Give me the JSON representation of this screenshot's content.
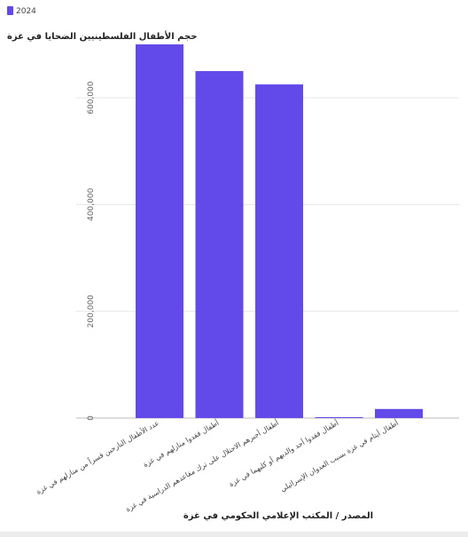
{
  "colors": {
    "bar": "#6149ea",
    "grid": "#e6e6e6",
    "axis": "#bbbbbb"
  },
  "chart_data": {
    "type": "bar",
    "title": "حجم الأطفال الفلسطينيين الضحايا في غزة",
    "xlabel": "المصدر / المكتب الإعلامي الحكومي في غزة",
    "ylabel": "",
    "legend": {
      "position": "top-left",
      "entries": [
        "2024"
      ]
    },
    "grid": true,
    "ylim": [
      0,
      700000
    ],
    "yticks": [
      0,
      200000,
      400000,
      600000
    ],
    "ytick_labels": [
      "0",
      "200,000",
      "400,000",
      "600,000"
    ],
    "categories": [
      "عدد الأطفال النازحين قسراً من منازلهم في غزة",
      "أطفال فقدوا منازلهم في غزة",
      "أطفال أجبرهم الاحتلال على ترك مقاعدهم الدراسية في غزة",
      "أطفال فقدوا أحد والديهم أو كليهما في غزة",
      "أطفال أيتام في غزة بسبب العدوان الإسرائيلي"
    ],
    "series": [
      {
        "name": "2024",
        "values": [
          700000,
          650000,
          625000,
          1000,
          17000
        ]
      }
    ]
  }
}
